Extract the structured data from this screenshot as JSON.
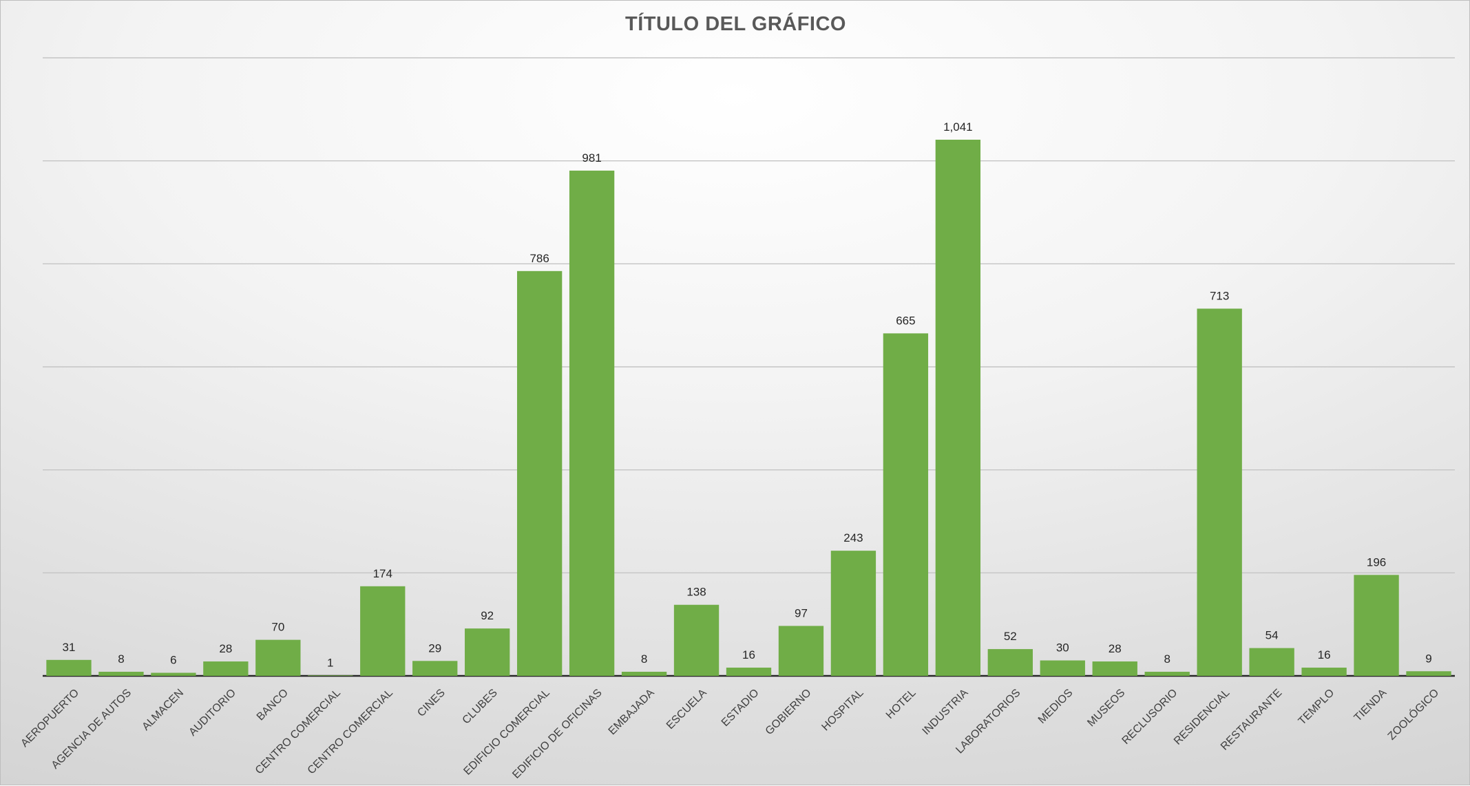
{
  "chart_data": {
    "type": "bar",
    "title": "TÍTULO DEL GRÁFICO",
    "xlabel": "",
    "ylabel": "",
    "ylim": [
      0,
      1200
    ],
    "grid": true,
    "legend": "none",
    "bar_color": "#70ad47",
    "categories": [
      "AEROPUERTO",
      "AGENCIA DE AUTOS",
      "ALMACEN",
      "AUDITORIO",
      "BANCO",
      "CENTRO COMERCIAL",
      "CENTRO COMERCIAL",
      "CINES",
      "CLUBES",
      "EDIFICIO COMERCIAL",
      "EDIFICIO DE OFICINAS",
      "EMBAJADA",
      "ESCUELA",
      "ESTADIO",
      "GOBIERNO",
      "HOSPITAL",
      "HOTEL",
      "INDUSTRIA",
      "LABORATORIOS",
      "MEDIOS",
      "MUSEOS",
      "RECLUSORIO",
      "RESIDENCIAL",
      "RESTAURANTE",
      "TEMPLO",
      "TIENDA",
      "ZOOLÓGICO"
    ],
    "values": [
      31,
      8,
      6,
      28,
      70,
      1,
      174,
      29,
      92,
      786,
      981,
      8,
      138,
      16,
      97,
      243,
      665,
      1041,
      52,
      30,
      28,
      8,
      713,
      54,
      16,
      196,
      9
    ],
    "data_labels": [
      "31",
      "8",
      "6",
      "28",
      "70",
      "1",
      "174",
      "29",
      "92",
      "786",
      "981",
      "8",
      "138",
      "16",
      "97",
      "243",
      "665",
      "1,041",
      "52",
      "30",
      "28",
      "8",
      "713",
      "54",
      "16",
      "196",
      "9"
    ]
  }
}
